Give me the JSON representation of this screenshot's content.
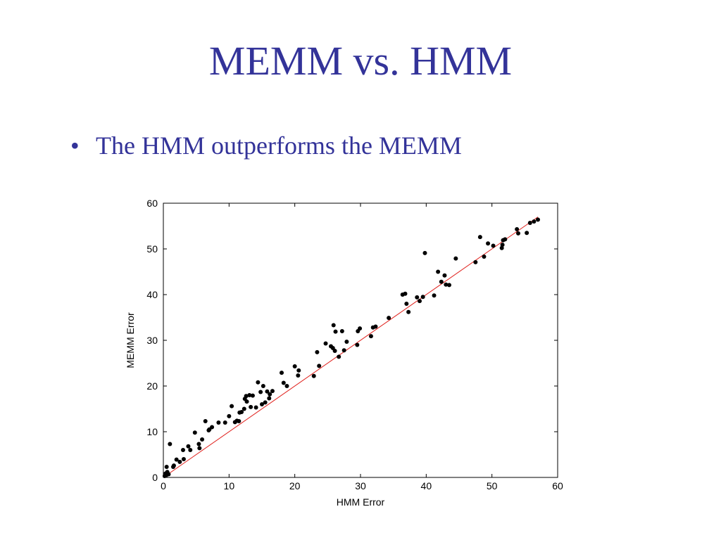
{
  "slide": {
    "title": "MEMM vs. HMM",
    "bullet_symbol": "•",
    "bullet_text": "The HMM outperforms the MEMM"
  },
  "colors": {
    "title": "#333399",
    "points": "#000000",
    "reference_line": "#e0201c"
  },
  "chart_data": {
    "type": "scatter",
    "title": "",
    "xlabel": "HMM Error",
    "ylabel": "MEMM Error",
    "xlim": [
      0,
      60
    ],
    "ylim": [
      0,
      60
    ],
    "xticks": [
      0,
      10,
      20,
      30,
      40,
      50,
      60
    ],
    "yticks": [
      0,
      10,
      20,
      30,
      40,
      50,
      60
    ],
    "grid": false,
    "reference_line": {
      "from": [
        0,
        0
      ],
      "to": [
        57,
        57
      ]
    },
    "series": [
      {
        "points": [
          [
            0.2,
            0.3
          ],
          [
            0.3,
            0.8
          ],
          [
            0.4,
            0.4
          ],
          [
            0.5,
            1.0
          ],
          [
            0.6,
            1.2
          ],
          [
            0.8,
            0.7
          ],
          [
            0.5,
            2.3
          ],
          [
            1.0,
            7.3
          ],
          [
            1.5,
            2.3
          ],
          [
            1.6,
            2.6
          ],
          [
            2.0,
            3.9
          ],
          [
            2.5,
            3.4
          ],
          [
            3.0,
            6.0
          ],
          [
            3.1,
            4.0
          ],
          [
            3.8,
            6.8
          ],
          [
            4.1,
            6.0
          ],
          [
            4.8,
            9.8
          ],
          [
            5.4,
            7.3
          ],
          [
            5.5,
            6.4
          ],
          [
            5.9,
            8.3
          ],
          [
            6.4,
            12.3
          ],
          [
            6.9,
            10.3
          ],
          [
            7.0,
            10.5
          ],
          [
            7.4,
            11.0
          ],
          [
            8.4,
            12.0
          ],
          [
            9.4,
            12.0
          ],
          [
            10.0,
            13.4
          ],
          [
            10.4,
            15.6
          ],
          [
            10.9,
            12.1
          ],
          [
            11.2,
            12.4
          ],
          [
            11.5,
            12.3
          ],
          [
            11.6,
            14.2
          ],
          [
            11.9,
            14.3
          ],
          [
            12.3,
            15.0
          ],
          [
            12.4,
            17.2
          ],
          [
            12.6,
            17.8
          ],
          [
            12.7,
            16.6
          ],
          [
            13.1,
            18.0
          ],
          [
            13.3,
            15.4
          ],
          [
            13.6,
            17.9
          ],
          [
            14.1,
            15.3
          ],
          [
            14.4,
            20.8
          ],
          [
            14.8,
            18.7
          ],
          [
            15.0,
            16.0
          ],
          [
            15.2,
            20.0
          ],
          [
            15.5,
            16.4
          ],
          [
            15.8,
            18.8
          ],
          [
            16.1,
            17.3
          ],
          [
            16.2,
            18.2
          ],
          [
            16.6,
            18.9
          ],
          [
            18.0,
            22.9
          ],
          [
            18.3,
            20.7
          ],
          [
            18.8,
            20.0
          ],
          [
            20.0,
            24.3
          ],
          [
            20.5,
            22.3
          ],
          [
            20.6,
            23.4
          ],
          [
            22.9,
            22.2
          ],
          [
            23.4,
            27.4
          ],
          [
            23.7,
            24.4
          ],
          [
            24.7,
            29.3
          ],
          [
            25.5,
            28.7
          ],
          [
            25.8,
            28.3
          ],
          [
            25.9,
            33.3
          ],
          [
            26.1,
            27.7
          ],
          [
            26.2,
            31.9
          ],
          [
            26.7,
            26.4
          ],
          [
            27.2,
            32.0
          ],
          [
            27.5,
            27.8
          ],
          [
            27.9,
            29.7
          ],
          [
            29.5,
            29.0
          ],
          [
            29.6,
            32.0
          ],
          [
            29.9,
            32.6
          ],
          [
            31.6,
            30.9
          ],
          [
            31.9,
            32.8
          ],
          [
            32.3,
            33.0
          ],
          [
            34.3,
            34.9
          ],
          [
            36.4,
            40.0
          ],
          [
            36.8,
            40.2
          ],
          [
            37.0,
            38.0
          ],
          [
            37.3,
            36.2
          ],
          [
            38.6,
            39.4
          ],
          [
            39.0,
            38.6
          ],
          [
            39.5,
            39.5
          ],
          [
            39.8,
            49.1
          ],
          [
            41.2,
            39.8
          ],
          [
            41.8,
            45.0
          ],
          [
            42.3,
            42.8
          ],
          [
            42.8,
            44.2
          ],
          [
            43.0,
            42.2
          ],
          [
            43.5,
            42.1
          ],
          [
            44.5,
            47.9
          ],
          [
            47.5,
            47.1
          ],
          [
            48.2,
            52.6
          ],
          [
            48.8,
            48.3
          ],
          [
            49.4,
            51.2
          ],
          [
            50.2,
            50.7
          ],
          [
            51.5,
            50.2
          ],
          [
            51.6,
            50.9
          ],
          [
            51.7,
            51.9
          ],
          [
            52.0,
            52.1
          ],
          [
            53.8,
            54.3
          ],
          [
            54.0,
            53.4
          ],
          [
            55.3,
            53.5
          ],
          [
            55.8,
            55.7
          ],
          [
            56.4,
            56.0
          ],
          [
            57.0,
            56.4
          ]
        ]
      }
    ]
  }
}
